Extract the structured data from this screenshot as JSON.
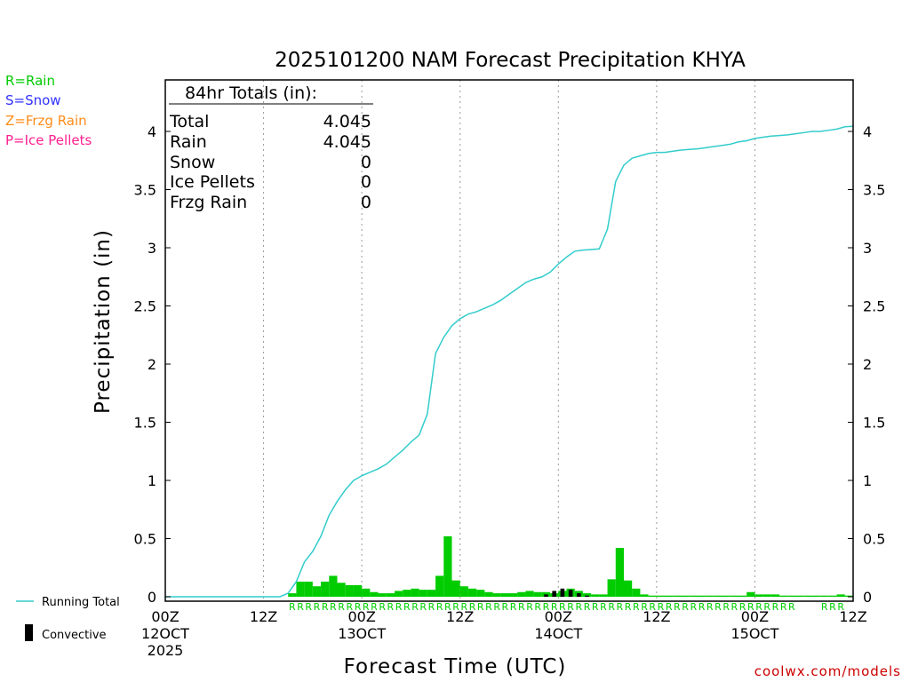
{
  "chart_data": {
    "type": "bar",
    "title": "2025101200 NAM Forecast Precipitation KHYA",
    "xlabel": "Forecast Time (UTC)",
    "ylabel": "Precipitation (in)",
    "ylim": [
      0,
      4.45
    ],
    "xlim": [
      0,
      84
    ],
    "yticks": [
      "0",
      "0.5",
      "1",
      "1.5",
      "2",
      "2.5",
      "3",
      "3.5",
      "4"
    ],
    "xticks": [
      {
        "hour": 0,
        "lines": [
          "00Z",
          "12OCT",
          "2025"
        ]
      },
      {
        "hour": 12,
        "lines": [
          "12Z"
        ]
      },
      {
        "hour": 24,
        "lines": [
          "00Z",
          "13OCT"
        ]
      },
      {
        "hour": 36,
        "lines": [
          "12Z"
        ]
      },
      {
        "hour": 48,
        "lines": [
          "00Z",
          "14OCT"
        ]
      },
      {
        "hour": 60,
        "lines": [
          "12Z"
        ]
      },
      {
        "hour": 72,
        "lines": [
          "00Z",
          "15OCT"
        ]
      },
      {
        "hour": 84,
        "lines": [
          "12Z"
        ]
      }
    ],
    "series": [
      {
        "name": "Hourly Precipitation",
        "start_hour": 0,
        "values": [
          0,
          0,
          0,
          0,
          0,
          0,
          0,
          0,
          0,
          0,
          0,
          0,
          0,
          0,
          0,
          0.03,
          0.13,
          0.13,
          0.09,
          0.13,
          0.18,
          0.12,
          0.1,
          0.1,
          0.07,
          0.04,
          0.03,
          0.03,
          0.05,
          0.06,
          0.07,
          0.06,
          0.06,
          0.18,
          0.52,
          0.14,
          0.09,
          0.07,
          0.06,
          0.04,
          0.03,
          0.03,
          0.03,
          0.04,
          0.05,
          0.04,
          0.04,
          0.03,
          0.05,
          0.07,
          0.05,
          0.03,
          0.02,
          0.02,
          0.15,
          0.42,
          0.14,
          0.07,
          0.02,
          0.01,
          0.01,
          0.01,
          0.01,
          0.01,
          0.01,
          0.01,
          0.01,
          0.01,
          0.01,
          0.01,
          0.01,
          0.04,
          0.02,
          0.02,
          0.02,
          0.01,
          0.01,
          0.01,
          0.01,
          0.01,
          0.01,
          0.01,
          0.02,
          0.01
        ]
      },
      {
        "name": "Convective",
        "start_hour": 46,
        "values": [
          0.02,
          0.05,
          0.07,
          0.06,
          0.03,
          0.01
        ]
      },
      {
        "name": "Running Total",
        "start_hour": 0,
        "values": [
          0,
          0,
          0,
          0,
          0,
          0,
          0,
          0,
          0,
          0,
          0,
          0,
          0,
          0,
          0,
          0.03,
          0.13,
          0.3,
          0.39,
          0.52,
          0.7,
          0.82,
          0.92,
          1.0,
          1.04,
          1.07,
          1.1,
          1.14,
          1.2,
          1.26,
          1.33,
          1.39,
          1.57,
          2.09,
          2.23,
          2.33,
          2.39,
          2.43,
          2.45,
          2.48,
          2.51,
          2.55,
          2.6,
          2.65,
          2.7,
          2.73,
          2.75,
          2.79,
          2.86,
          2.92,
          2.97,
          2.98,
          2.985,
          2.99,
          3.16,
          3.57,
          3.71,
          3.77,
          3.79,
          3.81,
          3.82,
          3.82,
          3.83,
          3.84,
          3.845,
          3.85,
          3.86,
          3.87,
          3.88,
          3.89,
          3.91,
          3.92,
          3.94,
          3.95,
          3.96,
          3.965,
          3.97,
          3.98,
          3.99,
          4.0,
          4.0,
          4.01,
          4.02,
          4.04,
          4.045
        ]
      }
    ],
    "ptype_strip": {
      "color": "#00cc00",
      "segments": [
        {
          "start": 15,
          "text": "RRRRRRRRRRRRRRRRRRRRRRRRRRRRRRRRRRRRRRRRRRRRRRRRRRRRRRRRRRRRRR"
        },
        {
          "start": 80,
          "text": "RRR"
        }
      ]
    },
    "totals_box": {
      "heading": "84hr Totals (in):",
      "rows": [
        {
          "label": "Total",
          "value": "4.045"
        },
        {
          "label": "Rain",
          "value": "4.045"
        },
        {
          "label": "Snow",
          "value": "0"
        },
        {
          "label": "Ice Pellets",
          "value": "0"
        },
        {
          "label": "Frzg Rain",
          "value": "0"
        }
      ]
    },
    "type_legend": [
      {
        "text": "R=Rain",
        "color": "#00cc00"
      },
      {
        "text": "S=Snow",
        "color": "#3333ff"
      },
      {
        "text": "Z=Frzg Rain",
        "color": "#ff8c1a"
      },
      {
        "text": "P=Ice Pellets",
        "color": "#ff2090"
      }
    ],
    "series_legend": [
      {
        "text": "Running Total",
        "color": "#33cccc"
      },
      {
        "text": "Convective",
        "color": "#000000"
      }
    ],
    "credit": "coolwx.com/models",
    "colors": {
      "bars": "#00cc00",
      "convective": "#000000",
      "running_total": "#33cccc",
      "credit": "#cc0000",
      "grid": "#999999"
    }
  }
}
